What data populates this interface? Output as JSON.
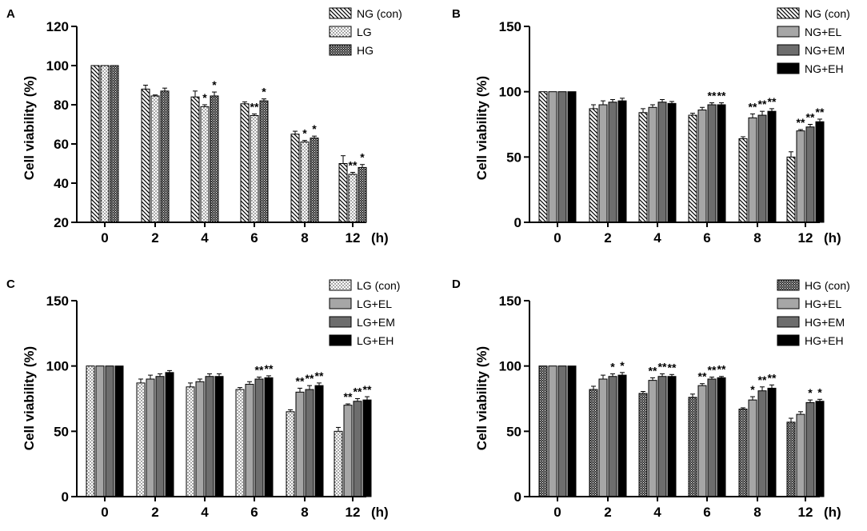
{
  "chart_data": [
    {
      "panel": "A",
      "type": "bar",
      "ylabel": "Cell viability (%)",
      "ylim": [
        20,
        120
      ],
      "yticks": [
        20,
        40,
        60,
        80,
        100,
        120
      ],
      "categories": [
        "0",
        "2",
        "4",
        "6",
        "8",
        "12"
      ],
      "x_unit": "(h)",
      "series": [
        {
          "name": "NG (con)",
          "pattern": "diag",
          "values": [
            100,
            88,
            84,
            80.5,
            65,
            50
          ],
          "errors": [
            0,
            2,
            3,
            1,
            1.5,
            4
          ],
          "stars": [
            "",
            "",
            "",
            "",
            "",
            ""
          ]
        },
        {
          "name": "LG",
          "pattern": "dots",
          "values": [
            100,
            84.5,
            79,
            74.5,
            61,
            44.5
          ],
          "errors": [
            0,
            0.5,
            1,
            0.8,
            0.8,
            1
          ],
          "stars": [
            "",
            "",
            "*",
            "**",
            "*",
            "**"
          ]
        },
        {
          "name": "HG",
          "pattern": "dense",
          "values": [
            100,
            87,
            84.5,
            82,
            63,
            48
          ],
          "errors": [
            0,
            1.5,
            2,
            1,
            1,
            1.5
          ],
          "stars": [
            "",
            "",
            "*",
            "*",
            "*",
            "*"
          ]
        }
      ]
    },
    {
      "panel": "B",
      "type": "bar",
      "ylabel": "Cell viability (%)",
      "ylim": [
        0,
        150
      ],
      "yticks": [
        0,
        50,
        100,
        150
      ],
      "categories": [
        "0",
        "2",
        "4",
        "6",
        "8",
        "12"
      ],
      "x_unit": "(h)",
      "series": [
        {
          "name": "NG (con)",
          "pattern": "diag",
          "values": [
            100,
            87,
            84,
            82,
            64,
            50
          ],
          "errors": [
            0,
            3,
            3,
            1.5,
            1.5,
            4
          ],
          "stars": [
            "",
            "",
            "",
            "",
            "",
            ""
          ]
        },
        {
          "name": "NG+EL",
          "pattern": "light",
          "values": [
            100,
            90,
            88,
            86,
            80,
            70
          ],
          "errors": [
            0,
            3,
            2,
            2,
            3,
            1
          ],
          "stars": [
            "",
            "",
            "",
            "",
            "**",
            "**"
          ]
        },
        {
          "name": "NG+EM",
          "pattern": "mid",
          "values": [
            100,
            92,
            92,
            90,
            82,
            73
          ],
          "errors": [
            0,
            2,
            2,
            1.5,
            3,
            2
          ],
          "stars": [
            "",
            "",
            "",
            "**",
            "**",
            "**"
          ]
        },
        {
          "name": "NG+EH",
          "pattern": "black",
          "values": [
            100,
            93,
            91,
            90,
            85,
            77
          ],
          "errors": [
            0,
            2,
            1.5,
            1.5,
            2,
            2
          ],
          "stars": [
            "",
            "",
            "",
            "**",
            "**",
            "**"
          ]
        }
      ]
    },
    {
      "panel": "C",
      "type": "bar",
      "ylabel": "Cell viability (%)",
      "ylim": [
        0,
        150
      ],
      "yticks": [
        0,
        50,
        100,
        150
      ],
      "categories": [
        "0",
        "2",
        "4",
        "6",
        "8",
        "12"
      ],
      "x_unit": "(h)",
      "series": [
        {
          "name": "LG (con)",
          "pattern": "dots",
          "values": [
            100,
            87,
            84,
            82,
            65,
            50
          ],
          "errors": [
            0,
            3,
            3,
            1.5,
            1.5,
            3
          ],
          "stars": [
            "",
            "",
            "",
            "",
            "",
            ""
          ]
        },
        {
          "name": "LG+EL",
          "pattern": "light",
          "values": [
            100,
            90,
            88,
            86,
            80,
            70
          ],
          "errors": [
            0,
            3,
            2,
            2,
            3,
            1
          ],
          "stars": [
            "",
            "",
            "",
            "",
            "**",
            "**"
          ]
        },
        {
          "name": "LG+EM",
          "pattern": "mid",
          "values": [
            100,
            92,
            92,
            90,
            82,
            73
          ],
          "errors": [
            0,
            2,
            2,
            1.5,
            3,
            2
          ],
          "stars": [
            "",
            "",
            "",
            "**",
            "**",
            "**"
          ]
        },
        {
          "name": "LG+EH",
          "pattern": "black",
          "values": [
            100,
            95,
            92,
            91,
            85,
            74
          ],
          "errors": [
            0,
            1.5,
            2,
            1.5,
            2,
            2.5
          ],
          "stars": [
            "",
            "",
            "",
            "**",
            "**",
            "**"
          ]
        }
      ]
    },
    {
      "panel": "D",
      "type": "bar",
      "ylabel": "Cell viability (%)",
      "ylim": [
        0,
        150
      ],
      "yticks": [
        0,
        50,
        100,
        150
      ],
      "categories": [
        "0",
        "2",
        "4",
        "6",
        "8",
        "12"
      ],
      "x_unit": "(h)",
      "series": [
        {
          "name": "HG (con)",
          "pattern": "dense",
          "values": [
            100,
            82,
            79,
            76,
            67,
            57
          ],
          "errors": [
            0,
            2.5,
            1.5,
            2.5,
            1,
            3
          ],
          "stars": [
            "",
            "",
            "",
            "",
            "",
            ""
          ]
        },
        {
          "name": "HG+EL",
          "pattern": "light",
          "values": [
            100,
            90,
            89,
            85,
            74,
            63
          ],
          "errors": [
            0,
            3,
            2,
            1.5,
            2.5,
            2
          ],
          "stars": [
            "",
            "",
            "**",
            "**",
            "*",
            ""
          ]
        },
        {
          "name": "HG+EM",
          "pattern": "mid",
          "values": [
            100,
            92,
            92,
            90,
            81,
            72
          ],
          "errors": [
            0,
            2,
            2,
            1.5,
            3,
            2
          ],
          "stars": [
            "",
            "*",
            "**",
            "**",
            "**",
            "*"
          ]
        },
        {
          "name": "HG+EH",
          "pattern": "black",
          "values": [
            100,
            93,
            92,
            91,
            83,
            73
          ],
          "errors": [
            0,
            2,
            1.5,
            1,
            2.5,
            1.5
          ],
          "stars": [
            "",
            "*",
            "**",
            "**",
            "**",
            "*"
          ]
        }
      ]
    }
  ]
}
